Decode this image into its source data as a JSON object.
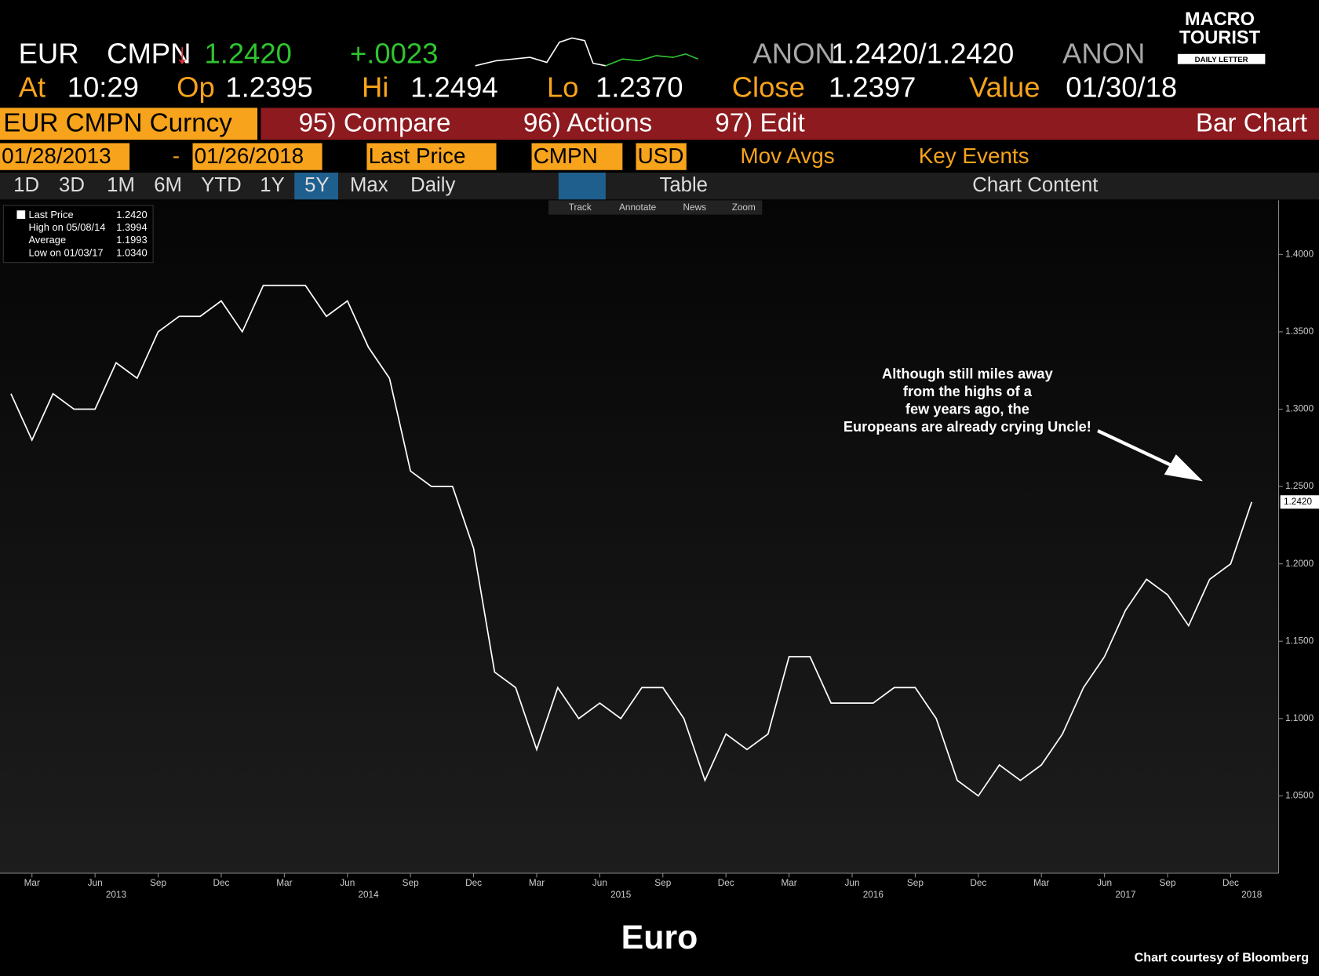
{
  "header": {
    "row1": [
      "EUR",
      "CMPN",
      "↓",
      "1.2420",
      "+.0023",
      "ANON",
      "1.2420/1.2420",
      "ANON"
    ],
    "row2": [
      "At",
      "10:29",
      "Op",
      "1.2395",
      "Hi",
      "1.2494",
      "Lo",
      "1.2370",
      "Close",
      "1.2397",
      "Value",
      "01/30/18"
    ],
    "logo": [
      "MACRO",
      "TOURIST",
      "DAILY LETTER"
    ],
    "toolbar1": [
      "EUR CMPN Curncy",
      "95) Compare",
      "96) Actions",
      "97) Edit",
      "Bar Chart"
    ],
    "toolbar2": [
      "01/28/2013",
      "-",
      "01/26/2018",
      "Last Price",
      "CMPN",
      "USD",
      "Mov Avgs",
      "Key Events"
    ],
    "toolbar3": [
      "1D",
      "3D",
      "1M",
      "6M",
      "YTD",
      "1Y",
      "5Y",
      "Max",
      "Daily",
      "Table",
      "Chart Content"
    ],
    "tools": [
      "Track",
      "Annotate",
      "News",
      "Zoom"
    ]
  },
  "chart_data": {
    "type": "line",
    "title": "Euro",
    "credit": "Chart courtesy of Bloomberg",
    "annotation": "Although still miles away from the highs of a few years ago, the Europeans are already crying Uncle!",
    "legend": [
      [
        "Last Price",
        "1.2420"
      ],
      [
        "High on 05/08/14",
        "1.3994"
      ],
      [
        "Average",
        "1.1993"
      ],
      [
        "Low on 01/03/17",
        "1.0340"
      ]
    ],
    "last_label": "1.2420",
    "series": [
      {
        "name": "Last Price",
        "color": "#ffffff",
        "x": [
          "2013-02",
          "2013-03",
          "2013-04",
          "2013-05",
          "2013-06",
          "2013-07",
          "2013-08",
          "2013-09",
          "2013-10",
          "2013-11",
          "2013-12",
          "2014-01",
          "2014-02",
          "2014-03",
          "2014-04",
          "2014-05",
          "2014-06",
          "2014-07",
          "2014-08",
          "2014-09",
          "2014-10",
          "2014-11",
          "2014-12",
          "2015-01",
          "2015-02",
          "2015-03",
          "2015-04",
          "2015-05",
          "2015-06",
          "2015-07",
          "2015-08",
          "2015-09",
          "2015-10",
          "2015-11",
          "2015-12",
          "2016-01",
          "2016-02",
          "2016-03",
          "2016-04",
          "2016-05",
          "2016-06",
          "2016-07",
          "2016-08",
          "2016-09",
          "2016-10",
          "2016-11",
          "2016-12",
          "2017-01",
          "2017-02",
          "2017-03",
          "2017-04",
          "2017-05",
          "2017-06",
          "2017-07",
          "2017-08",
          "2017-09",
          "2017-10",
          "2017-11",
          "2017-12",
          "2018-01"
        ],
        "values": [
          1.31,
          1.28,
          1.31,
          1.3,
          1.3,
          1.33,
          1.32,
          1.35,
          1.36,
          1.36,
          1.37,
          1.35,
          1.38,
          1.38,
          1.38,
          1.36,
          1.37,
          1.34,
          1.32,
          1.26,
          1.25,
          1.25,
          1.21,
          1.13,
          1.12,
          1.08,
          1.12,
          1.1,
          1.11,
          1.1,
          1.12,
          1.12,
          1.1,
          1.06,
          1.09,
          1.08,
          1.09,
          1.14,
          1.14,
          1.11,
          1.11,
          1.11,
          1.12,
          1.12,
          1.1,
          1.06,
          1.05,
          1.07,
          1.06,
          1.07,
          1.09,
          1.12,
          1.14,
          1.17,
          1.19,
          1.18,
          1.16,
          1.19,
          1.2,
          1.24
        ]
      }
    ],
    "ylim": [
      1.0,
      1.435
    ],
    "yticks": [
      {
        "value": 1.05,
        "label": "1.0500"
      },
      {
        "value": 1.1,
        "label": "1.1000"
      },
      {
        "value": 1.15,
        "label": "1.1500"
      },
      {
        "value": 1.2,
        "label": "1.2000"
      },
      {
        "value": 1.25,
        "label": "1.2500"
      },
      {
        "value": 1.3,
        "label": "1.3000"
      },
      {
        "value": 1.35,
        "label": "1.3500"
      },
      {
        "value": 1.4,
        "label": "1.4000"
      }
    ],
    "xticks": [
      {
        "value": "2013-03",
        "label": "Mar"
      },
      {
        "value": "2013-06",
        "label": "Jun"
      },
      {
        "value": "2013-09",
        "label": "Sep"
      },
      {
        "value": "2013-12",
        "label": "Dec"
      },
      {
        "value": "2014-03",
        "label": "Mar"
      },
      {
        "value": "2014-06",
        "label": "Jun"
      },
      {
        "value": "2014-09",
        "label": "Sep"
      },
      {
        "value": "2014-12",
        "label": "Dec"
      },
      {
        "value": "2015-03",
        "label": "Mar"
      },
      {
        "value": "2015-06",
        "label": "Jun"
      },
      {
        "value": "2015-09",
        "label": "Sep"
      },
      {
        "value": "2015-12",
        "label": "Dec"
      },
      {
        "value": "2016-03",
        "label": "Mar"
      },
      {
        "value": "2016-06",
        "label": "Jun"
      },
      {
        "value": "2016-09",
        "label": "Sep"
      },
      {
        "value": "2016-12",
        "label": "Dec"
      },
      {
        "value": "2017-03",
        "label": "Mar"
      },
      {
        "value": "2017-06",
        "label": "Jun"
      },
      {
        "value": "2017-09",
        "label": "Sep"
      },
      {
        "value": "2017-12",
        "label": "Dec"
      }
    ],
    "year_ticks": [
      {
        "value": "2013-07",
        "label": "2013"
      },
      {
        "value": "2014-07",
        "label": "2014"
      },
      {
        "value": "2015-07",
        "label": "2015"
      },
      {
        "value": "2016-07",
        "label": "2016"
      },
      {
        "value": "2017-07",
        "label": "2017"
      },
      {
        "value": "2018-01",
        "label": "2018"
      }
    ]
  }
}
